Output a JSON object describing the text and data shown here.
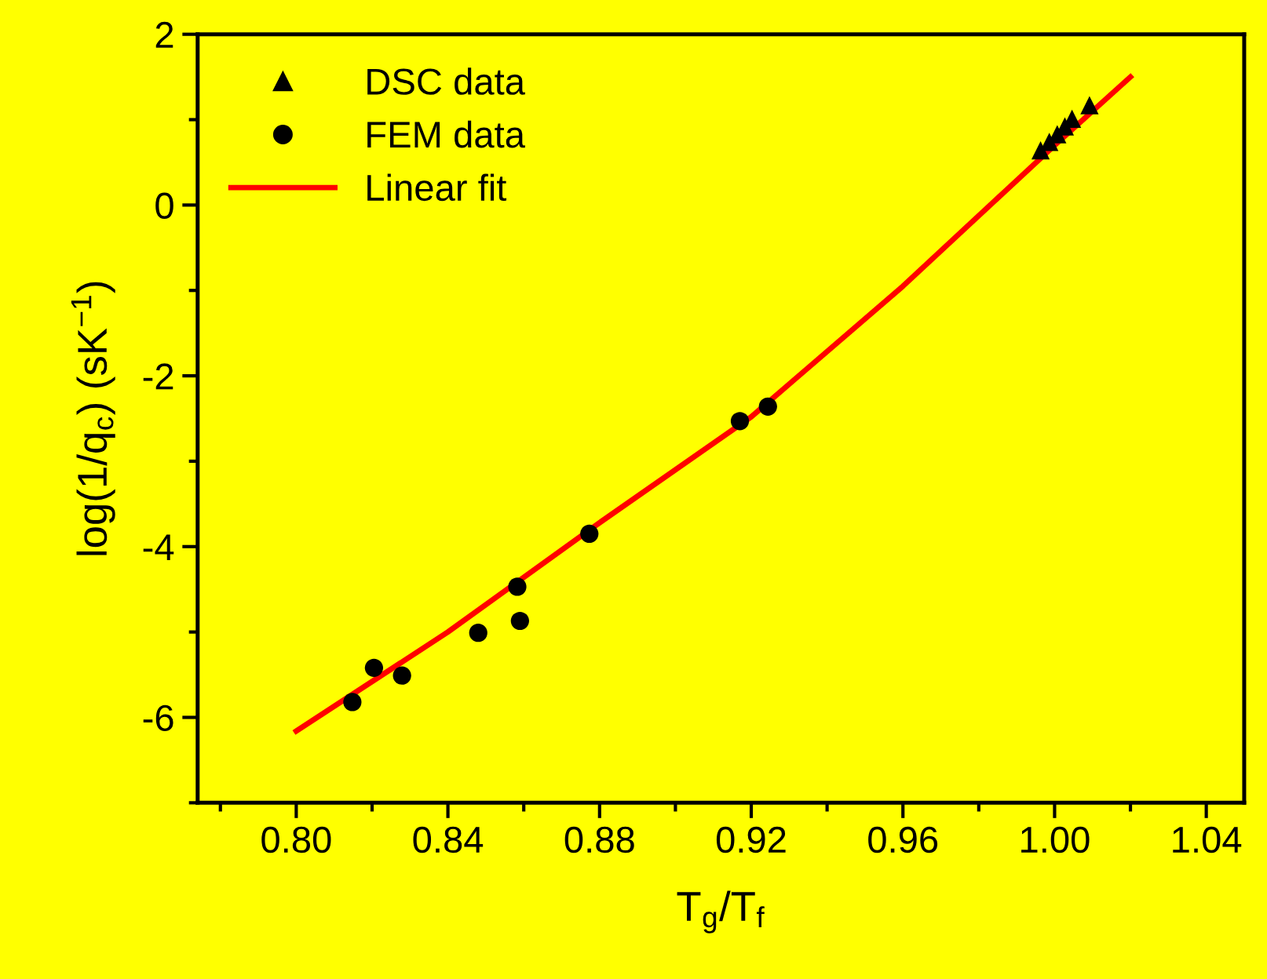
{
  "chart_data": {
    "type": "scatter",
    "xlabel": "T$_{g}$/T$_{f}$",
    "ylabel": "log(1/q$_{c}$) (sK$^{−1}$)",
    "xlim": [
      0.774,
      1.05
    ],
    "ylim": [
      -7,
      2
    ],
    "xticks": [
      {
        "value": 0.8,
        "label": "0.80"
      },
      0.84,
      0.88,
      0.92,
      0.96,
      {
        "value": 1.0,
        "label": "1.00"
      },
      1.04
    ],
    "yticks": [
      -6,
      -4,
      -2,
      0,
      2
    ],
    "grid": false,
    "legend": "top left",
    "series": [
      {
        "name": "DSC data",
        "marker": "triangle",
        "color": "#000000",
        "x": [
          0.9963,
          0.9986,
          1.0007,
          1.0027,
          1.0046,
          1.0092
        ],
        "values": [
          0.64,
          0.74,
          0.83,
          0.92,
          1.01,
          1.17
        ]
      },
      {
        "name": "FEM data",
        "marker": "circle",
        "color": "#000000",
        "x": [
          0.8148,
          0.8205,
          0.8279,
          0.848,
          0.859,
          0.8583,
          0.8773,
          0.917,
          0.9244
        ],
        "values": [
          -5.82,
          -5.42,
          -5.51,
          -5.01,
          -4.87,
          -4.47,
          -3.85,
          -2.53,
          -2.36
        ]
      },
      {
        "name": "Linear fit",
        "type": "line",
        "marker": "none",
        "line_style": "solid",
        "color": "#ff0000",
        "x": [
          0.8,
          0.84,
          0.88,
          0.92,
          0.96,
          1.0,
          1.02
        ],
        "values": [
          -6.16,
          -5.0,
          -3.72,
          -2.48,
          -0.95,
          0.7,
          1.5
        ]
      }
    ]
  }
}
